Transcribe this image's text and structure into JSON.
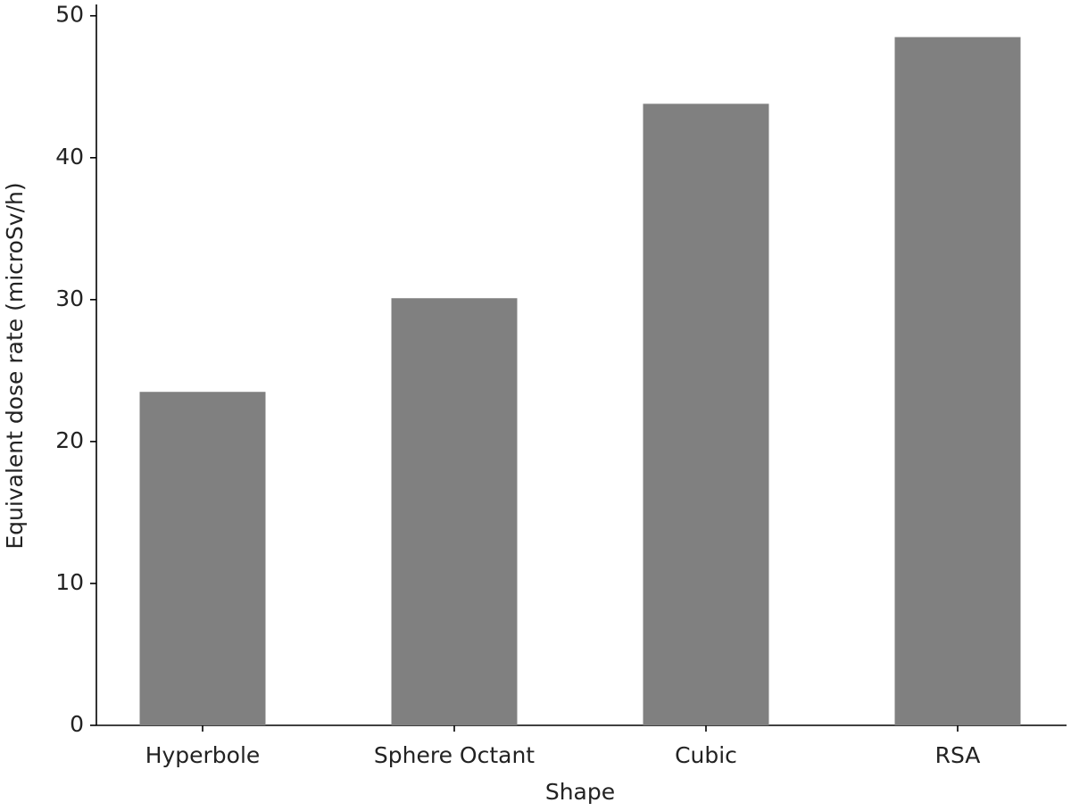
{
  "chart_data": {
    "type": "bar",
    "x_label": "Shape",
    "y_label": "Equivalent dose rate (microSv/h)",
    "categories": [
      "Hyperbole",
      "Sphere Octant",
      "Cubic",
      "RSA"
    ],
    "values": [
      23.5,
      30.1,
      43.8,
      48.5
    ],
    "color": "#808080",
    "ylim": [
      0,
      50.8
    ],
    "yticks": [
      0,
      10,
      20,
      30,
      40,
      50
    ],
    "grid": false
  }
}
